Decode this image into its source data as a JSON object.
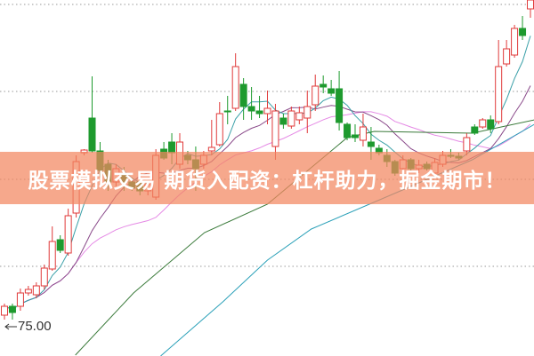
{
  "banner": {
    "text": "股票模拟交易 期货入配资：杠杆助力，掘金期市！"
  },
  "chart_data": {
    "type": "candlestick",
    "title": "",
    "xlabel": "",
    "ylabel": "",
    "ylim": [
      71.7,
      111.8
    ],
    "grid": true,
    "gridlines": [
      111.3,
      101.5,
      91.6,
      81.8
    ],
    "annotation": {
      "text": "75.00",
      "value": 75.0
    },
    "colors": {
      "up": "#e03a3a",
      "down": "#1e9a2e",
      "ma5": "#3aa0a8",
      "ma10": "#8a4a8a",
      "ma20": "#e58ae5",
      "ma60": "#3a7a3a",
      "ma120": "#2aa0b8",
      "grid": "#999999"
    },
    "candles_ohlc": [
      [
        76.3,
        77.3,
        77.6,
        75.8
      ],
      [
        77.3,
        76.6,
        77.6,
        75.8
      ],
      [
        77.3,
        78.8,
        79.3,
        76.8
      ],
      [
        78.8,
        79.2,
        79.6,
        78.5
      ],
      [
        78.6,
        79.6,
        80.0,
        78.2
      ],
      [
        79.6,
        81.6,
        82.0,
        79.2
      ],
      [
        81.5,
        84.6,
        86.3,
        81.3
      ],
      [
        84.8,
        83.6,
        85.3,
        83.3
      ],
      [
        83.3,
        87.5,
        88.3,
        83.0
      ],
      [
        87.8,
        93.6,
        94.3,
        87.3
      ],
      [
        94.6,
        94.9,
        95.0,
        94.3
      ],
      [
        98.5,
        94.8,
        103.2,
        94.6
      ],
      [
        94.8,
        92.6,
        95.8,
        91.8
      ],
      [
        93.3,
        91.3,
        93.8,
        90.3
      ],
      [
        91.3,
        92.8,
        93.3,
        90.8
      ],
      [
        92.3,
        91.3,
        93.0,
        90.3
      ],
      [
        91.3,
        90.6,
        91.8,
        90.3
      ],
      [
        91.3,
        90.3,
        91.8,
        89.8
      ],
      [
        90.3,
        91.0,
        91.3,
        89.8
      ],
      [
        89.6,
        94.3,
        95.0,
        89.3
      ],
      [
        95.0,
        94.0,
        95.8,
        93.8
      ],
      [
        95.8,
        94.6,
        96.8,
        93.3
      ],
      [
        93.3,
        95.8,
        96.8,
        92.8
      ],
      [
        94.3,
        93.8,
        94.8,
        93.3
      ],
      [
        93.8,
        92.8,
        95.3,
        90.3
      ],
      [
        93.3,
        94.3,
        94.8,
        92.8
      ],
      [
        94.8,
        95.2,
        98.3,
        94.3
      ],
      [
        95.5,
        99.0,
        100.3,
        95.3
      ],
      [
        99.3,
        99.2,
        101.0,
        97.8
      ],
      [
        99.6,
        104.3,
        105.8,
        99.3
      ],
      [
        102.3,
        99.8,
        103.0,
        98.3
      ],
      [
        99.8,
        99.3,
        102.0,
        98.3
      ],
      [
        99.3,
        99.0,
        101.0,
        98.5
      ],
      [
        99.0,
        99.6,
        101.6,
        97.8
      ],
      [
        95.3,
        99.3,
        100.1,
        93.8
      ],
      [
        98.5,
        97.8,
        99.0,
        97.3
      ],
      [
        97.6,
        99.3,
        99.8,
        97.3
      ],
      [
        98.3,
        99.1,
        99.8,
        97.8
      ],
      [
        98.5,
        99.8,
        101.6,
        96.8
      ],
      [
        100.0,
        102.1,
        103.4,
        99.3
      ],
      [
        102.3,
        102.0,
        103.3,
        101.3
      ],
      [
        101.8,
        101.3,
        102.8,
        101.0
      ],
      [
        101.8,
        98.0,
        103.8,
        97.1
      ],
      [
        97.8,
        96.3,
        98.0,
        96.0
      ],
      [
        96.6,
        96.3,
        97.8,
        95.8
      ],
      [
        96.0,
        97.5,
        99.0,
        95.3
      ],
      [
        95.8,
        95.3,
        97.5,
        93.8
      ],
      [
        95.1,
        94.6,
        95.5,
        94.3
      ],
      [
        94.3,
        93.6,
        95.0,
        93.0
      ],
      [
        93.6,
        92.3,
        93.8,
        92.0
      ],
      [
        92.8,
        93.8,
        94.3,
        91.8
      ],
      [
        93.8,
        92.8,
        94.0,
        92.6
      ],
      [
        92.8,
        93.2,
        93.8,
        92.3
      ],
      [
        93.3,
        92.8,
        93.6,
        92.6
      ],
      [
        92.3,
        93.5,
        94.0,
        91.8
      ],
      [
        93.3,
        94.3,
        94.8,
        93.0
      ],
      [
        94.3,
        94.2,
        95.0,
        94.0
      ],
      [
        94.2,
        94.0,
        94.6,
        93.8
      ],
      [
        94.8,
        96.3,
        96.8,
        94.3
      ],
      [
        97.5,
        96.8,
        97.8,
        96.6
      ],
      [
        97.5,
        98.3,
        98.5,
        97.3
      ],
      [
        98.3,
        97.3,
        98.8,
        96.8
      ],
      [
        98.1,
        104.3,
        107.3,
        97.8
      ],
      [
        104.6,
        106.3,
        107.3,
        104.3
      ],
      [
        105.6,
        108.6,
        109.0,
        105.3
      ],
      [
        108.6,
        107.8,
        110.0,
        107.3
      ],
      [
        110.8,
        111.8,
        111.8,
        109.8
      ]
    ],
    "long_ma_series": [
      {
        "key": "ma60",
        "points": [
          [
            8.9,
            71.8
          ],
          [
            16.2,
            78.8
          ],
          [
            25.1,
            85.6
          ],
          [
            33,
            88.8
          ],
          [
            43,
            96.3
          ],
          [
            46.4,
            97.0
          ],
          [
            58.7,
            96.8
          ],
          [
            66.5,
            98.3
          ]
        ]
      },
      {
        "key": "ma120",
        "points": [
          [
            19.6,
            71.7
          ],
          [
            27.4,
            77.8
          ],
          [
            33,
            82.5
          ],
          [
            38.5,
            86.0
          ],
          [
            49.7,
            90.3
          ],
          [
            58.7,
            93.8
          ],
          [
            66.5,
            97.8
          ]
        ]
      }
    ]
  }
}
